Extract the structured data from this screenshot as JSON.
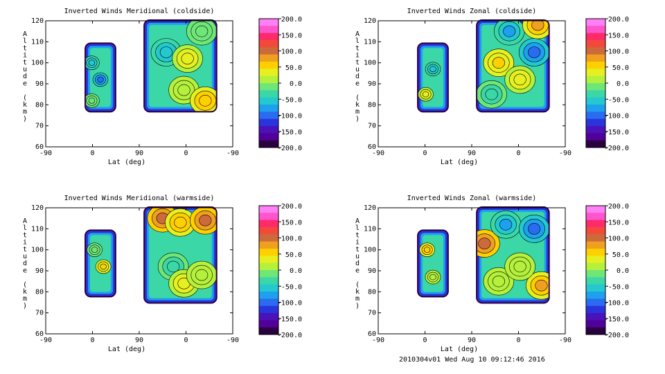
{
  "footer": "2010304v01 Wed Aug 10 09:12:46 2016",
  "shared": {
    "ylabel": "Altitude (km)",
    "xlabel": "Lat (deg)",
    "xticks": [
      "-90",
      "0",
      "90",
      "0",
      "-90"
    ],
    "yticks": [
      "60",
      "70",
      "80",
      "90",
      "100",
      "110",
      "120"
    ],
    "colorbar_labels": [
      "200.0",
      "150.0",
      "100.0",
      "50.0",
      "0.0",
      "-50.0",
      "-100.0",
      "-150.0",
      "-200.0"
    ],
    "colorbar_colors": [
      "#ff7ff5",
      "#ff55cc",
      "#ff2a6a",
      "#f24a3a",
      "#cd6a3c",
      "#f0a020",
      "#ffd000",
      "#e6ef20",
      "#b4f03c",
      "#6ee678",
      "#3cd7a6",
      "#24c8cf",
      "#1ea0ee",
      "#2a6cf0",
      "#2a34dc",
      "#4a12b8",
      "#52009a",
      "#2a0040"
    ]
  },
  "chart_data": [
    {
      "type": "heatmap",
      "title": "Inverted Winds Meridional (coldside)",
      "ylim": [
        60,
        120
      ],
      "clim": [
        -200,
        200
      ],
      "cells": [
        {
          "patch": "left",
          "x": 0.2,
          "y": 82,
          "value": -20
        },
        {
          "patch": "left",
          "x": 0.5,
          "y": 92,
          "value": -110
        },
        {
          "patch": "left",
          "x": 0.2,
          "y": 100,
          "value": -60
        },
        {
          "patch": "right",
          "x": 0.3,
          "y": 105,
          "value": -60
        },
        {
          "patch": "right",
          "x": 0.6,
          "y": 102,
          "value": 30
        },
        {
          "patch": "right",
          "x": 0.55,
          "y": 87,
          "value": 10
        },
        {
          "patch": "right",
          "x": 0.85,
          "y": 82,
          "value": 60
        },
        {
          "patch": "right",
          "x": 0.8,
          "y": 115,
          "value": -20
        }
      ]
    },
    {
      "type": "heatmap",
      "title": "Inverted Winds Zonal (coldside)",
      "ylim": [
        60,
        120
      ],
      "clim": [
        -200,
        200
      ],
      "cells": [
        {
          "patch": "left",
          "x": 0.25,
          "y": 85,
          "value": 40
        },
        {
          "patch": "left",
          "x": 0.5,
          "y": 97,
          "value": -60
        },
        {
          "patch": "right",
          "x": 0.3,
          "y": 100,
          "value": 50
        },
        {
          "patch": "right",
          "x": 0.6,
          "y": 92,
          "value": 30
        },
        {
          "patch": "right",
          "x": 0.8,
          "y": 105,
          "value": -100
        },
        {
          "patch": "right",
          "x": 0.45,
          "y": 115,
          "value": -80
        },
        {
          "patch": "right",
          "x": 0.85,
          "y": 118,
          "value": 80
        },
        {
          "patch": "right",
          "x": 0.2,
          "y": 85,
          "value": -40
        }
      ]
    },
    {
      "type": "heatmap",
      "title": "Inverted Winds Meridional (warmside)",
      "ylim": [
        60,
        120
      ],
      "clim": [
        -200,
        200
      ],
      "cells": [
        {
          "patch": "left",
          "x": 0.6,
          "y": 92,
          "value": 50
        },
        {
          "patch": "left",
          "x": 0.3,
          "y": 100,
          "value": -20
        },
        {
          "patch": "right",
          "x": 0.25,
          "y": 115,
          "value": 90
        },
        {
          "patch": "right",
          "x": 0.5,
          "y": 113,
          "value": 60
        },
        {
          "patch": "right",
          "x": 0.85,
          "y": 114,
          "value": 110
        },
        {
          "patch": "right",
          "x": 0.4,
          "y": 92,
          "value": -30
        },
        {
          "patch": "right",
          "x": 0.55,
          "y": 84,
          "value": 30
        },
        {
          "patch": "right",
          "x": 0.8,
          "y": 88,
          "value": 10
        }
      ]
    },
    {
      "type": "heatmap",
      "title": "Inverted Winds Zonal (warmside)",
      "ylim": [
        60,
        120
      ],
      "clim": [
        -200,
        200
      ],
      "cells": [
        {
          "patch": "left",
          "x": 0.3,
          "y": 100,
          "value": 60
        },
        {
          "patch": "left",
          "x": 0.5,
          "y": 87,
          "value": 10
        },
        {
          "patch": "right",
          "x": 0.1,
          "y": 103,
          "value": 90
        },
        {
          "patch": "right",
          "x": 0.4,
          "y": 112,
          "value": -80
        },
        {
          "patch": "right",
          "x": 0.8,
          "y": 110,
          "value": -110
        },
        {
          "patch": "right",
          "x": 0.3,
          "y": 85,
          "value": 20
        },
        {
          "patch": "right",
          "x": 0.9,
          "y": 83,
          "value": 70
        },
        {
          "patch": "right",
          "x": 0.6,
          "y": 92,
          "value": 10
        }
      ]
    }
  ]
}
